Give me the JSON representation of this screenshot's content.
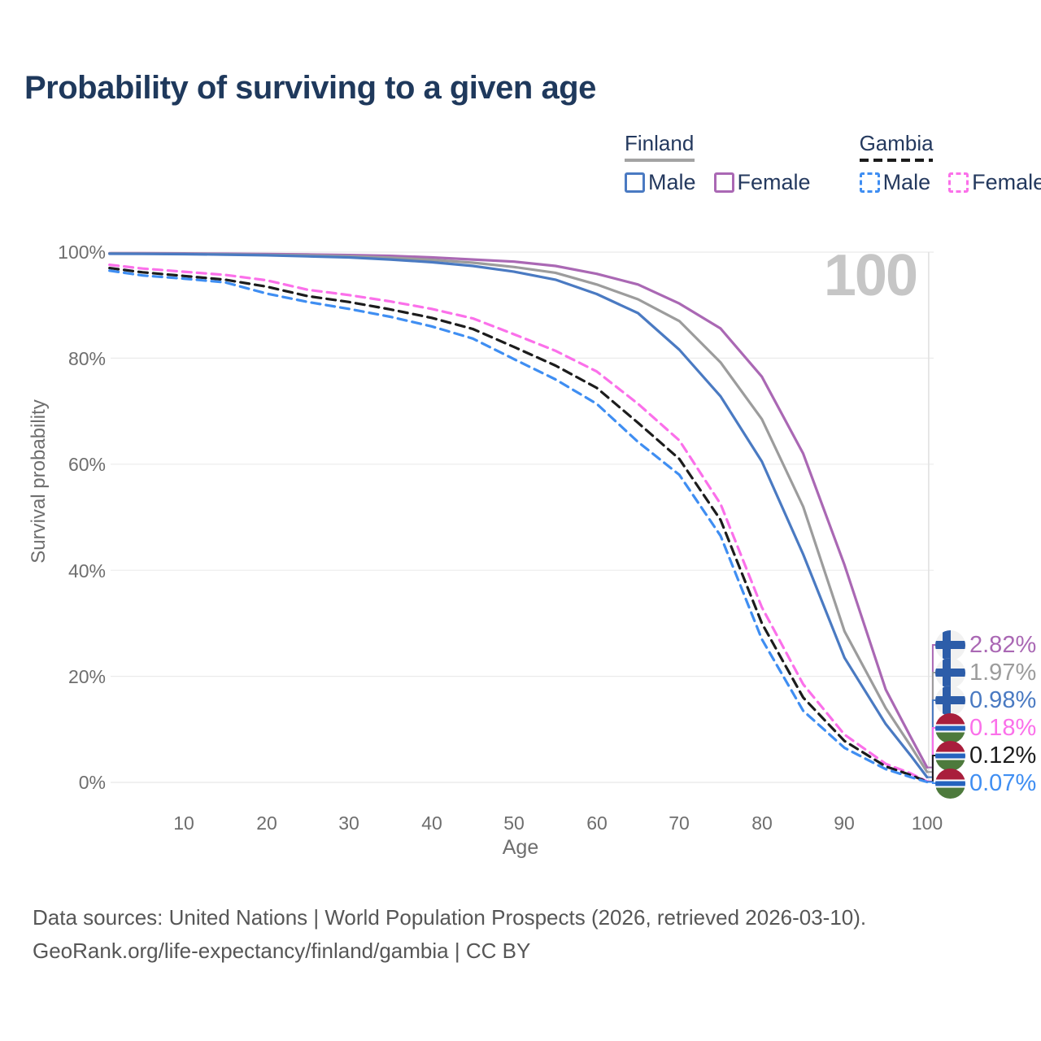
{
  "title": "Probability of surviving to a given age",
  "watermark_age": "100",
  "legend": {
    "groups": [
      {
        "label": "Finland",
        "line_style": "solid",
        "items": [
          {
            "label": "Male",
            "color": "#4a7ac2"
          },
          {
            "label": "Female",
            "color": "#aa68b4"
          }
        ]
      },
      {
        "label": "Gambia",
        "line_style": "dashed",
        "items": [
          {
            "label": "Male",
            "color": "#3f8ef2"
          },
          {
            "label": "Female",
            "color": "#fb70ea"
          }
        ]
      }
    ]
  },
  "axes": {
    "y": {
      "title": "Survival probability",
      "ticks": [
        "100%",
        "80%",
        "60%",
        "40%",
        "20%",
        "0%"
      ]
    },
    "x": {
      "title": "Age",
      "ticks": [
        "10",
        "20",
        "30",
        "40",
        "50",
        "60",
        "70",
        "80",
        "90",
        "100"
      ]
    }
  },
  "chart_data": {
    "type": "line",
    "title": "Probability of surviving to a given age",
    "xlabel": "Age",
    "ylabel": "Survival probability",
    "xlim": [
      1,
      100
    ],
    "ylim": [
      0,
      100
    ],
    "grid": "horizontal-only",
    "y_gridlines_pct": [
      0,
      20,
      40,
      60,
      80,
      100
    ],
    "x_tick_values": [
      10,
      20,
      30,
      40,
      50,
      60,
      70,
      80,
      90,
      100
    ],
    "current_age_marker": 100,
    "legend_position": "top-right",
    "x": [
      1,
      5,
      10,
      15,
      20,
      25,
      30,
      35,
      40,
      45,
      50,
      55,
      60,
      65,
      70,
      75,
      80,
      85,
      90,
      95,
      98,
      100
    ],
    "series": [
      {
        "name": "Finland Female",
        "country": "Finland",
        "sex": "female",
        "style": "solid",
        "color": "#aa68b4",
        "end_label": "2.82%",
        "values": [
          99.8,
          99.78,
          99.75,
          99.7,
          99.65,
          99.55,
          99.45,
          99.3,
          99.0,
          98.6,
          98.2,
          97.4,
          95.9,
          93.9,
          90.3,
          85.6,
          76.5,
          62.0,
          41.0,
          17.5,
          8.6,
          2.82
        ]
      },
      {
        "name": "Finland (both sexes)",
        "country": "Finland",
        "sex": "total",
        "style": "solid",
        "color": "#9c9c9c",
        "end_label": "1.97%",
        "values": [
          99.75,
          99.72,
          99.68,
          99.6,
          99.5,
          99.38,
          99.22,
          98.95,
          98.55,
          98.0,
          97.2,
          96.1,
          93.9,
          91.1,
          87.0,
          79.2,
          68.5,
          52.0,
          28.5,
          14.0,
          6.9,
          1.97
        ]
      },
      {
        "name": "Finland Male",
        "country": "Finland",
        "sex": "male",
        "style": "solid",
        "color": "#4a7ac2",
        "end_label": "0.98%",
        "values": [
          99.7,
          99.67,
          99.62,
          99.53,
          99.4,
          99.2,
          99.0,
          98.6,
          98.1,
          97.4,
          96.3,
          94.8,
          92.1,
          88.5,
          81.6,
          72.8,
          60.5,
          43.0,
          23.5,
          11.0,
          5.1,
          0.98
        ]
      },
      {
        "name": "Gambia Female",
        "country": "Gambia",
        "sex": "female",
        "style": "dashed",
        "color": "#fb70ea",
        "end_label": "0.18%",
        "values": [
          97.6,
          96.9,
          96.3,
          95.7,
          94.7,
          92.9,
          91.9,
          90.7,
          89.3,
          87.5,
          84.5,
          81.4,
          77.5,
          71.4,
          64.5,
          52.5,
          33.0,
          18.5,
          9.0,
          3.5,
          1.7,
          0.18
        ]
      },
      {
        "name": "Gambia (both sexes)",
        "country": "Gambia",
        "sex": "total",
        "style": "dashed",
        "color": "#1c1c1c",
        "end_label": "0.12%",
        "values": [
          97.0,
          96.2,
          95.5,
          94.8,
          93.5,
          91.7,
          90.6,
          89.2,
          87.6,
          85.5,
          82.1,
          78.6,
          74.4,
          67.8,
          61.0,
          49.5,
          30.0,
          16.0,
          7.8,
          3.0,
          1.4,
          0.12
        ]
      },
      {
        "name": "Gambia Male",
        "country": "Gambia",
        "sex": "male",
        "style": "dashed",
        "color": "#3f8ef2",
        "end_label": "0.07%",
        "values": [
          96.5,
          95.6,
          95.0,
          94.3,
          92.2,
          90.6,
          89.3,
          87.8,
          86.0,
          83.7,
          79.8,
          76.0,
          71.4,
          64.2,
          58.0,
          46.5,
          27.0,
          13.5,
          6.5,
          2.5,
          1.0,
          0.07
        ]
      }
    ]
  },
  "end_labels": [
    {
      "value": "2.82%",
      "flag": "finland",
      "color": "#aa68b4"
    },
    {
      "value": "1.97%",
      "flag": "finland",
      "color": "#9c9c9c"
    },
    {
      "value": "0.98%",
      "flag": "finland",
      "color": "#4a7ac2"
    },
    {
      "value": "0.18%",
      "flag": "gambia",
      "color": "#fb70ea"
    },
    {
      "value": "0.12%",
      "flag": "gambia",
      "color": "#1c1c1c"
    },
    {
      "value": "0.07%",
      "flag": "gambia",
      "color": "#3f8ef2"
    }
  ],
  "footer": {
    "line1": "Data sources: United Nations | World Population Prospects (2026, retrieved 2026-03-10).",
    "line2": "GeoRank.org/life-expectancy/finland/gambia | CC BY"
  }
}
